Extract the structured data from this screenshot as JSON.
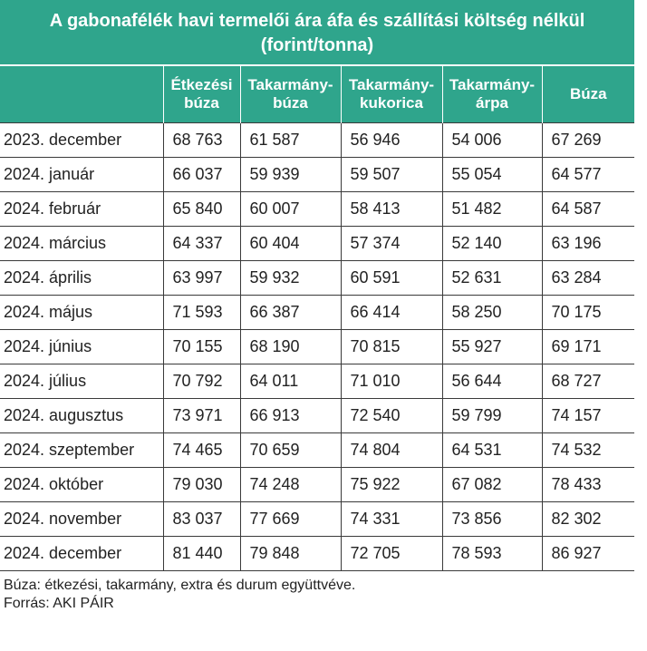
{
  "chart_data": {
    "type": "table",
    "title": "A gabonafélék havi termelői ára áfa és szállítási költség nélkül (forint/tonna)",
    "columns": [
      "",
      "Étkezési búza",
      "Takarmány-búza",
      "Takarmány-kukorica",
      "Takarmány-árpa",
      "Búza"
    ],
    "rows": [
      [
        "2023. december",
        "68 763",
        "61 587",
        "56 946",
        "54 006",
        "67 269"
      ],
      [
        "2024. január",
        "66 037",
        "59 939",
        "59 507",
        "55 054",
        "64 577"
      ],
      [
        "2024. február",
        "65 840",
        "60 007",
        "58 413",
        "51 482",
        "64 587"
      ],
      [
        "2024. március",
        "64 337",
        "60 404",
        "57 374",
        "52 140",
        "63 196"
      ],
      [
        "2024. április",
        "63 997",
        "59 932",
        "60 591",
        "52 631",
        "63 284"
      ],
      [
        "2024. május",
        "71 593",
        "66 387",
        "66 414",
        "58 250",
        "70 175"
      ],
      [
        "2024. június",
        "70 155",
        "68 190",
        "70 815",
        "55 927",
        "69 171"
      ],
      [
        "2024. július",
        "70 792",
        "64 011",
        "71 010",
        "56 644",
        "68 727"
      ],
      [
        "2024. augusztus",
        "73 971",
        "66 913",
        "72 540",
        "59 799",
        "74 157"
      ],
      [
        "2024. szeptember",
        "74 465",
        "70 659",
        "74 804",
        "64 531",
        "74 532"
      ],
      [
        "2024. október",
        "79 030",
        "74 248",
        "75 922",
        "67 082",
        "78 433"
      ],
      [
        "2024. november",
        "83 037",
        "77 669",
        "74 331",
        "73 856",
        "82 302"
      ],
      [
        "2024. december",
        "81 440",
        "79 848",
        "72 705",
        "78 593",
        "86 927"
      ]
    ],
    "notes": [
      "Búza: étkezési, takarmány, extra és durum együttvéve.",
      "Forrás: AKI PÁIR"
    ],
    "header_color": "#2fa58c"
  }
}
